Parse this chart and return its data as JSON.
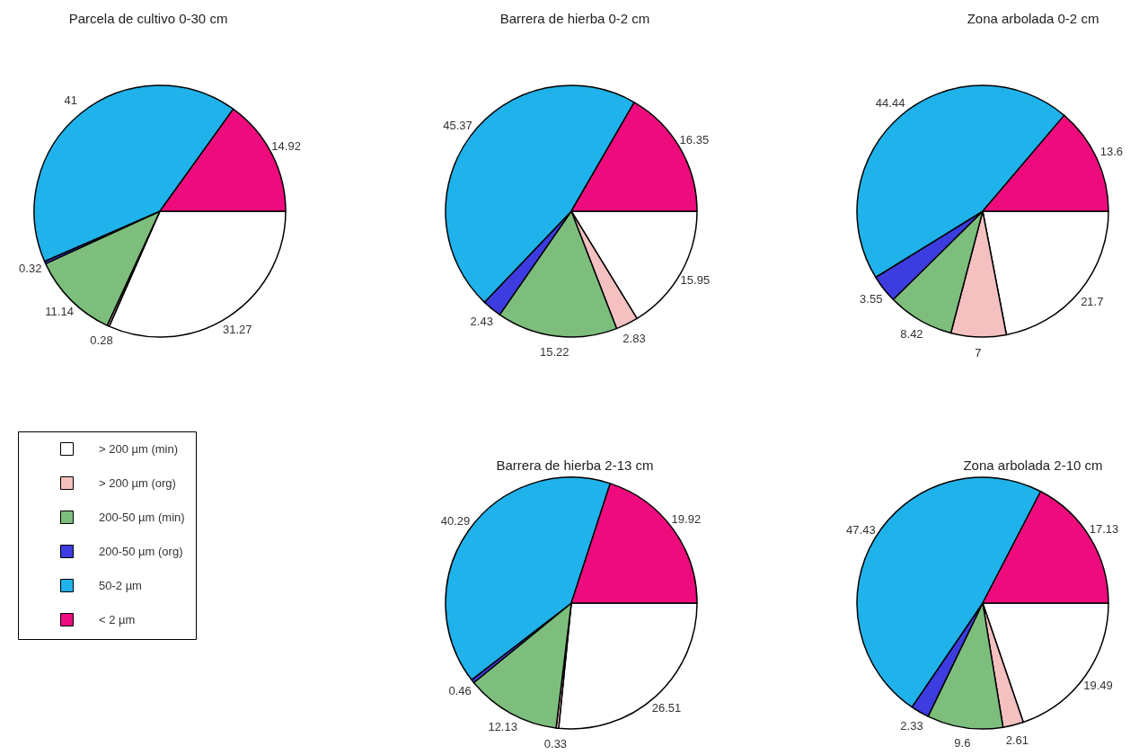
{
  "chart_data": [
    {
      "type": "pie",
      "title": "Parcela de cultivo 0-30 cm",
      "categories": [
        "> 200 µm (min)",
        "> 200 µm (org)",
        "200-50 µm (min)",
        "200-50 µm (org)",
        "50-2 µm",
        "< 2 µm"
      ],
      "values": [
        31.27,
        0.28,
        11.14,
        0.32,
        41,
        14.92
      ],
      "colors": [
        "#ffffff",
        "#f4c0c0",
        "#7dbe7d",
        "#3c3ce0",
        "#20b2ea",
        "#ee0b7e"
      ],
      "data_labels": true,
      "legend": "bottom"
    },
    {
      "type": "pie",
      "title": "Barrera de hierba 0-2 cm",
      "categories": [
        null,
        null,
        null,
        null,
        null,
        null
      ],
      "values": [
        15.95,
        2.83,
        15.22,
        2.43,
        45.37,
        16.35
      ],
      "colors": [
        "#ffffff",
        "#f4c0c0",
        "#7dbe7d",
        "#3c3ce0",
        "#20b2ea",
        "#ee0b7e"
      ],
      "data_labels": true
    },
    {
      "type": "pie",
      "title": "Zona arbolada 0-2 cm",
      "categories": [
        null,
        null,
        null,
        null,
        null,
        null
      ],
      "values": [
        21.7,
        7,
        8.42,
        3.55,
        44.44,
        13.6
      ],
      "colors": [
        "#ffffff",
        "#f4c0c0",
        "#7dbe7d",
        "#3c3ce0",
        "#20b2ea",
        "#ee0b7e"
      ],
      "data_labels": true
    },
    {
      "type": "pie",
      "title": "Barrera de hierba 2-13 cm",
      "categories": [
        null,
        null,
        null,
        null,
        null,
        null
      ],
      "values": [
        26.51,
        0.33,
        12.13,
        0.46,
        40.29,
        19.92
      ],
      "colors": [
        "#ffffff",
        "#f4c0c0",
        "#7dbe7d",
        "#3c3ce0",
        "#20b2ea",
        "#ee0b7e"
      ],
      "data_labels": true
    },
    {
      "type": "pie",
      "title": "Zona arbolada 2-10 cm",
      "categories": [
        null,
        null,
        null,
        null,
        null,
        null
      ],
      "values": [
        19.49,
        2.61,
        9.6,
        2.33,
        47.43,
        17.13
      ],
      "colors": [
        "#ffffff",
        "#f4c0c0",
        "#7dbe7d",
        "#3c3ce0",
        "#20b2ea",
        "#ee0b7e"
      ],
      "data_labels": true
    }
  ]
}
